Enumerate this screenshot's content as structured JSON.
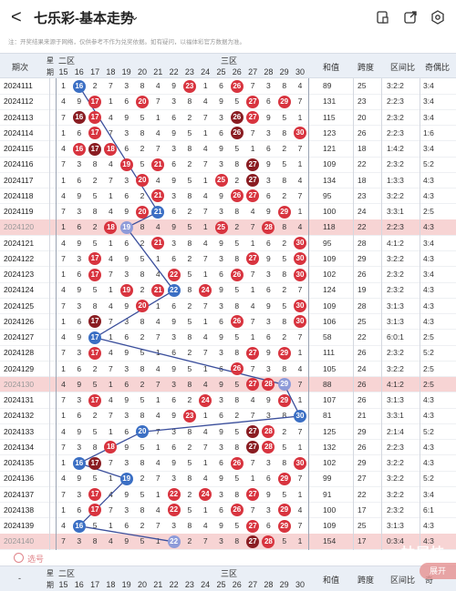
{
  "topbar": {
    "back_label": "<",
    "title": "七乐彩-基本走势",
    "icons": [
      "calculator-icon",
      "share-icon",
      "settings-icon"
    ]
  },
  "notice": "注：开奖结果来源于网络，仅供参考不作为兑奖依据。如有疑问，以福体彩官方数据为准。",
  "header": {
    "period": "期次",
    "zone_label": "二区",
    "zone3_label": "三区",
    "sum_label": "和值",
    "span_label": "跨度",
    "ratio_label": "区间比",
    "oddeven_label": "奇偶比",
    "col_prefix": "星期",
    "numbers": [
      "15",
      "16",
      "17",
      "18",
      "19",
      "20",
      "21",
      "22",
      "23",
      "24",
      "25",
      "26",
      "27",
      "28",
      "29",
      "30"
    ]
  },
  "footer": {
    "dash": "-",
    "col_prefix": "星期",
    "zone_label": "二区",
    "zone3_label": "三区",
    "sum_label": "和值",
    "span_label": "跨度",
    "ratio_label": "区间比",
    "oddeven_label": "奇"
  },
  "xuanhao_label": "选号",
  "expand_label": "展开",
  "watermark": "抽屉技",
  "rows": [
    {
      "p": "2024111",
      "sum": "89",
      "span": "25",
      "ratio": "3:2:2",
      "oe": "3:4",
      "hl": false
    },
    {
      "p": "2024112",
      "sum": "131",
      "span": "23",
      "ratio": "2:2:3",
      "oe": "3:4",
      "hl": false
    },
    {
      "p": "2024113",
      "sum": "115",
      "span": "20",
      "ratio": "2:3:2",
      "oe": "3:4",
      "hl": false
    },
    {
      "p": "2024114",
      "sum": "123",
      "span": "26",
      "ratio": "2:2:3",
      "oe": "1:6",
      "hl": false
    },
    {
      "p": "2024115",
      "sum": "121",
      "span": "18",
      "ratio": "1:4:2",
      "oe": "3:4",
      "hl": false
    },
    {
      "p": "2024116",
      "sum": "109",
      "span": "22",
      "ratio": "2:3:2",
      "oe": "5:2",
      "hl": false
    },
    {
      "p": "2024117",
      "sum": "134",
      "span": "18",
      "ratio": "1:3:3",
      "oe": "4:3",
      "hl": false
    },
    {
      "p": "2024118",
      "sum": "95",
      "span": "23",
      "ratio": "3:2:2",
      "oe": "4:3",
      "hl": false
    },
    {
      "p": "2024119",
      "sum": "100",
      "span": "24",
      "ratio": "3:3:1",
      "oe": "2:5",
      "hl": false
    },
    {
      "p": "2024120",
      "sum": "118",
      "span": "22",
      "ratio": "2:2:3",
      "oe": "4:3",
      "hl": true
    },
    {
      "p": "2024121",
      "sum": "95",
      "span": "28",
      "ratio": "4:1:2",
      "oe": "3:4",
      "hl": false
    },
    {
      "p": "2024122",
      "sum": "109",
      "span": "29",
      "ratio": "3:2:2",
      "oe": "4:3",
      "hl": false
    },
    {
      "p": "2024123",
      "sum": "102",
      "span": "26",
      "ratio": "2:3:2",
      "oe": "3:4",
      "hl": false
    },
    {
      "p": "2024124",
      "sum": "124",
      "span": "19",
      "ratio": "2:3:2",
      "oe": "4:3",
      "hl": false
    },
    {
      "p": "2024125",
      "sum": "109",
      "span": "28",
      "ratio": "3:1:3",
      "oe": "4:3",
      "hl": false
    },
    {
      "p": "2024126",
      "sum": "106",
      "span": "25",
      "ratio": "3:1:3",
      "oe": "4:3",
      "hl": false
    },
    {
      "p": "2024127",
      "sum": "58",
      "span": "22",
      "ratio": "6:0:1",
      "oe": "2:5",
      "hl": false
    },
    {
      "p": "2024128",
      "sum": "111",
      "span": "26",
      "ratio": "2:3:2",
      "oe": "5:2",
      "hl": false
    },
    {
      "p": "2024129",
      "sum": "105",
      "span": "24",
      "ratio": "3:2:2",
      "oe": "2:5",
      "hl": false
    },
    {
      "p": "2024130",
      "sum": "88",
      "span": "26",
      "ratio": "4:1:2",
      "oe": "2:5",
      "hl": true
    },
    {
      "p": "2024131",
      "sum": "107",
      "span": "26",
      "ratio": "3:1:3",
      "oe": "4:3",
      "hl": false
    },
    {
      "p": "2024132",
      "sum": "81",
      "span": "21",
      "ratio": "3:3:1",
      "oe": "4:3",
      "hl": false
    },
    {
      "p": "2024133",
      "sum": "125",
      "span": "29",
      "ratio": "2:1:4",
      "oe": "5:2",
      "hl": false
    },
    {
      "p": "2024134",
      "sum": "132",
      "span": "26",
      "ratio": "2:2:3",
      "oe": "4:3",
      "hl": false
    },
    {
      "p": "2024135",
      "sum": "102",
      "span": "29",
      "ratio": "3:2:2",
      "oe": "4:3",
      "hl": false
    },
    {
      "p": "2024136",
      "sum": "99",
      "span": "27",
      "ratio": "3:2:2",
      "oe": "5:2",
      "hl": false
    },
    {
      "p": "2024137",
      "sum": "91",
      "span": "22",
      "ratio": "3:2:2",
      "oe": "3:4",
      "hl": false
    },
    {
      "p": "2024138",
      "sum": "100",
      "span": "17",
      "ratio": "2:3:2",
      "oe": "6:1",
      "hl": false
    },
    {
      "p": "2024139",
      "sum": "109",
      "span": "25",
      "ratio": "3:1:3",
      "oe": "4:3",
      "hl": false
    },
    {
      "p": "2024140",
      "sum": "154",
      "span": "17",
      "ratio": "0:3:4",
      "oe": "4:3",
      "hl": true
    }
  ],
  "colors": {
    "red": "#d8343f",
    "dark": "#8a1d22",
    "blue": "#3b6fc4",
    "highlight": "#f7d4d4",
    "header": "#eaeff6"
  }
}
